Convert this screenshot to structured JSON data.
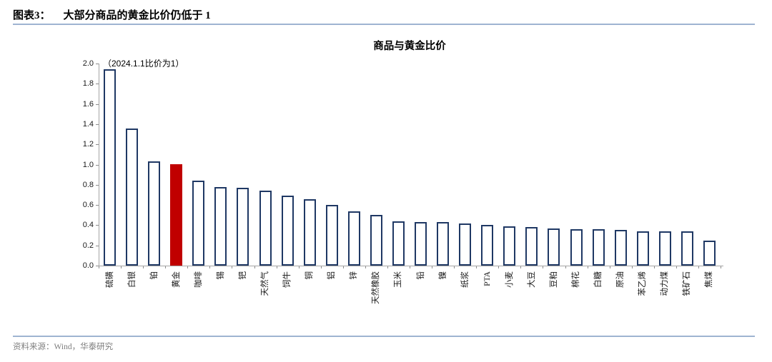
{
  "page": {
    "header_prefix": "图表3：",
    "header_title": "大部分商品的黄金比价仍低于 1",
    "source_label": "资料来源：Wind，华泰研究"
  },
  "chart_data": {
    "type": "bar",
    "title": "商品与黄金比价",
    "annotation": "（2024.1.1比价为1）",
    "categories": [
      "硫磺",
      "白银",
      "铂",
      "黄金",
      "咖啡",
      "锡",
      "钯",
      "天然气",
      "饲牛",
      "铜",
      "铝",
      "锌",
      "天然橡胶",
      "玉米",
      "铅",
      "镍",
      "纸浆",
      "PTA",
      "小麦",
      "大豆",
      "豆粕",
      "棉花",
      "白糖",
      "原油",
      "苯乙烯",
      "动力煤",
      "铁矿石",
      "焦煤"
    ],
    "values": [
      1.94,
      1.36,
      1.03,
      1.0,
      0.84,
      0.78,
      0.77,
      0.74,
      0.69,
      0.66,
      0.6,
      0.54,
      0.5,
      0.44,
      0.43,
      0.43,
      0.42,
      0.4,
      0.39,
      0.38,
      0.37,
      0.36,
      0.36,
      0.35,
      0.34,
      0.34,
      0.34,
      0.25
    ],
    "highlight_category": "黄金",
    "highlight_color": "#c00000",
    "bar_outline_color": "#1f3864",
    "bar_fill_color": "#ffffff",
    "ylim": [
      0,
      2.0
    ],
    "ytick_labels_top_to_bottom": [
      "2.0",
      "1.8",
      "1.6",
      "1.4",
      "1.2",
      "1.0",
      "0.8",
      "0.6",
      "0.4",
      "0.2",
      "0.0"
    ],
    "grid": false,
    "legend": "none",
    "xlabel": "",
    "ylabel": ""
  }
}
